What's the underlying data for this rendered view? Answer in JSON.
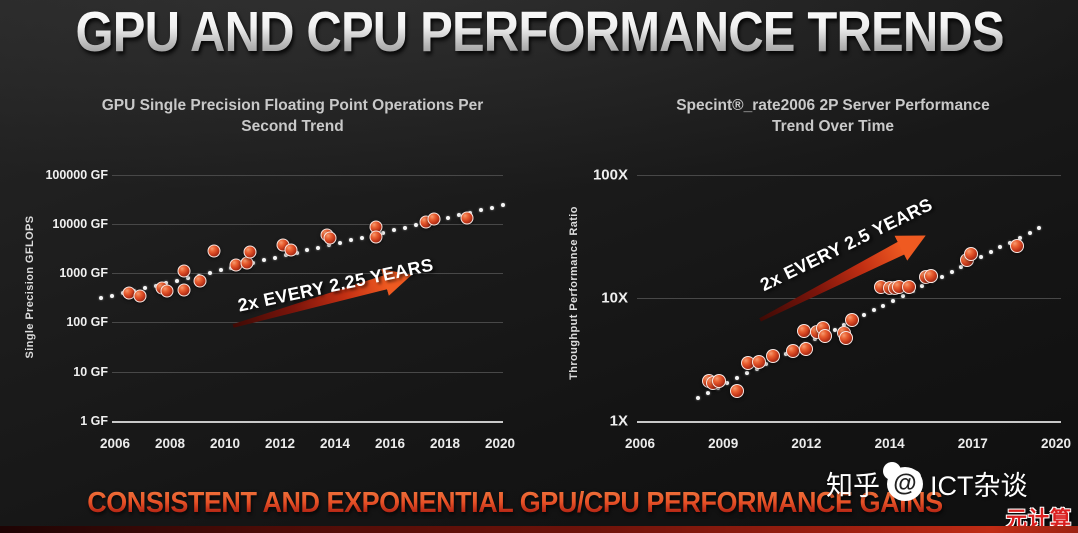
{
  "header": {
    "title": "GPU AND CPU PERFORMANCE TRENDS"
  },
  "footer": {
    "banner": "CONSISTENT AND EXPONENTIAL GPU/CPU PERFORMANCE GAINS"
  },
  "watermark": {
    "prefix": "知乎",
    "logo_glyph": "@",
    "at_handle": "ICT杂谈",
    "corner_badge": "元计算"
  },
  "colors": {
    "background": "#1b1b1b",
    "point_fill": "#d6431f",
    "point_ring": "#ffffff",
    "arrow_dark": "#3f0a05",
    "arrow_bright": "#ef5a21",
    "grid": "#484848",
    "axis_line": "#c9c9c9",
    "banner_red": "#b72815",
    "title_gray": "#8d8d8d"
  },
  "chart_data": [
    {
      "type": "scatter",
      "title": "GPU Single Precision Floating Point Operations Per Second Trend",
      "ylabel": "Single Precision GFLOPS",
      "xlabel": "",
      "y_scale": "log",
      "ylim": [
        1,
        100000
      ],
      "xlim": [
        2006,
        2020
      ],
      "grid": true,
      "y_ticks": [
        "100000 GF",
        "10000 GF",
        "1000 GF",
        "100 GF",
        "10 GF",
        "1 GF"
      ],
      "x_ticks": [
        "2006",
        "2008",
        "2010",
        "2012",
        "2014",
        "2016",
        "2018",
        "2020"
      ],
      "annotation": "2x EVERY 2.25 YEARS",
      "points": [
        [
          2006.5,
          390
        ],
        [
          2006.9,
          340
        ],
        [
          2007.7,
          490
        ],
        [
          2007.9,
          425
        ],
        [
          2008.5,
          1120
        ],
        [
          2008.5,
          445
        ],
        [
          2009.1,
          700
        ],
        [
          2009.6,
          2800
        ],
        [
          2010.4,
          1450
        ],
        [
          2010.8,
          1600
        ],
        [
          2010.9,
          2700
        ],
        [
          2012.1,
          3700
        ],
        [
          2012.4,
          2900
        ],
        [
          2013.7,
          5900
        ],
        [
          2013.8,
          5100
        ],
        [
          2015.5,
          8600
        ],
        [
          2015.5,
          5300
        ],
        [
          2017.3,
          10800
        ],
        [
          2017.6,
          12300
        ],
        [
          2018.8,
          13000
        ]
      ],
      "trend": {
        "style": "dotted",
        "from": [
          2005.5,
          310
        ],
        "to": [
          2020.1,
          24000
        ]
      }
    },
    {
      "type": "scatter",
      "title": "Specint®_rate2006 2P Server Performance Trend Over Time",
      "ylabel": "Throughput Performance Ratio",
      "xlabel": "",
      "y_scale": "log",
      "ylim": [
        1,
        100
      ],
      "xlim": [
        2006,
        2020
      ],
      "grid": true,
      "y_ticks": [
        "100X",
        "10X",
        "1X"
      ],
      "x_ticks": [
        "2006",
        "2009",
        "2012",
        "2014",
        "2017",
        "2020"
      ],
      "annotation": "2x EVERY 2.5 YEARS",
      "points": [
        [
          2008.5,
          2.1
        ],
        [
          2008.65,
          2.05
        ],
        [
          2008.85,
          2.1
        ],
        [
          2009.5,
          1.75
        ],
        [
          2009.9,
          2.95
        ],
        [
          2010.3,
          3.0
        ],
        [
          2010.8,
          3.4
        ],
        [
          2011.5,
          3.7
        ],
        [
          2011.9,
          5.4
        ],
        [
          2012.0,
          3.85
        ],
        [
          2012.25,
          5.3
        ],
        [
          2012.4,
          5.7
        ],
        [
          2012.45,
          4.9
        ],
        [
          2012.9,
          5.2
        ],
        [
          2012.95,
          4.7
        ],
        [
          2013.1,
          6.6
        ],
        [
          2013.8,
          12.3
        ],
        [
          2014.0,
          12.1
        ],
        [
          2014.2,
          12.1
        ],
        [
          2014.35,
          12.2
        ],
        [
          2014.7,
          12.3
        ],
        [
          2015.3,
          14.8
        ],
        [
          2015.5,
          15.1
        ],
        [
          2016.8,
          20.5
        ],
        [
          2016.95,
          22.8
        ],
        [
          2018.6,
          26.5
        ]
      ],
      "trend": {
        "style": "dotted",
        "from": [
          2008.1,
          1.55
        ],
        "to": [
          2019.4,
          37
        ]
      }
    }
  ]
}
